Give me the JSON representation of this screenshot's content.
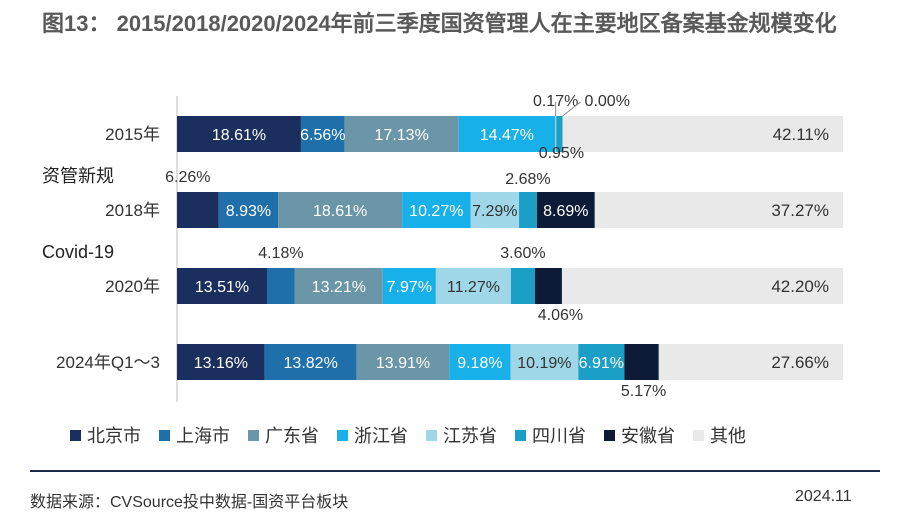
{
  "title": "图13： 2015/2018/2020/2024年前三季度国资管理人在主要地区备案基金规模变化",
  "source": "数据来源：CVSource投中数据-国资平台板块",
  "date": "2024.11",
  "colors": {
    "北京市": "#1b2f5e",
    "上海市": "#1f6fab",
    "广东省": "#6a96a8",
    "浙江省": "#17b0e8",
    "江苏省": "#9fd6e8",
    "四川省": "#1b9fc6",
    "安徽省": "#0d1b36",
    "其他": "#e9e9e9"
  },
  "chart_data": {
    "type": "bar",
    "orientation": "horizontal",
    "stacked": true,
    "percent": true,
    "categories": [
      "2015年",
      "2018年",
      "2020年",
      "2024年Q1～3"
    ],
    "series": [
      {
        "name": "北京市",
        "values": [
          18.61,
          6.26,
          13.51,
          13.16
        ]
      },
      {
        "name": "上海市",
        "values": [
          6.56,
          8.93,
          4.18,
          13.82
        ]
      },
      {
        "name": "广东省",
        "values": [
          17.13,
          18.61,
          13.21,
          13.91
        ]
      },
      {
        "name": "浙江省",
        "values": [
          14.47,
          10.27,
          7.97,
          9.18
        ]
      },
      {
        "name": "江苏省",
        "values": [
          0.17,
          7.29,
          11.27,
          10.19
        ]
      },
      {
        "name": "四川省",
        "values": [
          0.95,
          2.68,
          3.6,
          6.91
        ]
      },
      {
        "name": "安徽省",
        "values": [
          0,
          8.69,
          4.06,
          5.17
        ]
      },
      {
        "name": "其他",
        "values": [
          42.11,
          37.27,
          42.2,
          27.66
        ]
      }
    ],
    "annotations": [
      "资管新规",
      "Covid-19"
    ],
    "legend_position": "bottom",
    "grid": false
  }
}
